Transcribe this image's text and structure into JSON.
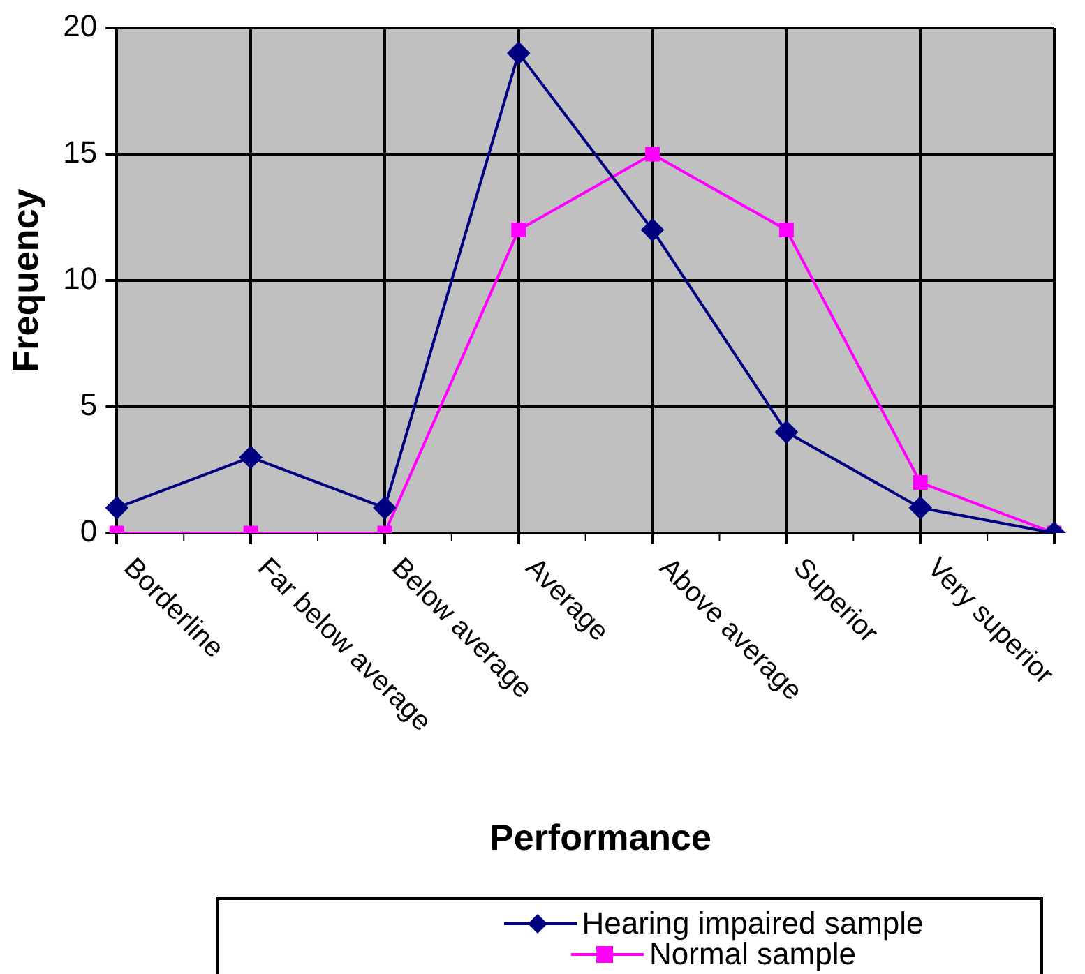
{
  "chart_data": {
    "type": "line",
    "xlabel": "Performance",
    "ylabel": "Frequency",
    "categories": [
      "Borderline",
      "Far below average",
      "Below average",
      "Average",
      "Above average",
      "Superior",
      "Very superior",
      null
    ],
    "series": [
      {
        "name": "Hearing impaired sample",
        "color": "#000080",
        "marker": "diamond",
        "values": [
          1,
          3,
          1,
          19,
          12,
          4,
          1,
          0
        ]
      },
      {
        "name": "Normal sample",
        "color": "#ff00ff",
        "marker": "square",
        "values": [
          0,
          0,
          0,
          12,
          15,
          12,
          2,
          0
        ]
      }
    ],
    "ylim": [
      0,
      20
    ],
    "yticks": [
      0,
      5,
      10,
      15,
      20
    ],
    "grid": true,
    "legend": "bottom"
  }
}
